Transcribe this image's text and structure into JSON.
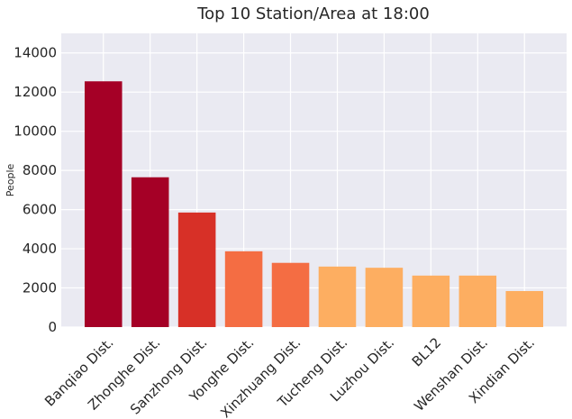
{
  "chart_data": {
    "type": "bar",
    "title": "Top 10 Station/Area at 18:00",
    "xlabel": "",
    "ylabel": "People",
    "ylim": [
      0,
      15000
    ],
    "yticks": [
      0,
      2000,
      4000,
      6000,
      8000,
      10000,
      12000,
      14000
    ],
    "grid": true,
    "legend": "none",
    "background_color": "#eaeaf2",
    "grid_color": "#ffffff",
    "categories": [
      "Banqiao Dist.",
      "Zhonghe Dist.",
      "Sanzhong Dist.",
      "Yonghe Dist.",
      "Xinzhuang Dist.",
      "Tucheng Dist.",
      "Luzhou Dist.",
      "BL12",
      "Wenshan Dist.",
      "Xindian Dist."
    ],
    "values": [
      12550,
      7650,
      5850,
      3870,
      3280,
      3090,
      3030,
      2630,
      2630,
      1840
    ],
    "colors": [
      "#a50026",
      "#a50026",
      "#d73027",
      "#f46d43",
      "#f46d43",
      "#fdae61",
      "#fdae61",
      "#fdae61",
      "#fdae61",
      "#fdae61"
    ]
  }
}
